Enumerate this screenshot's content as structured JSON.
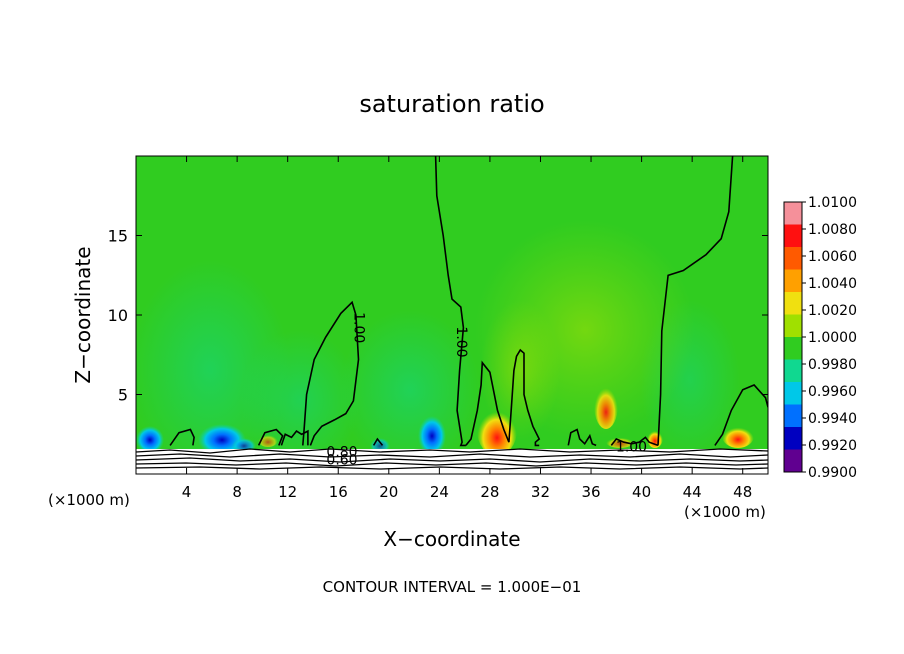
{
  "chart_data": {
    "type": "heatmap",
    "title": "saturation ratio",
    "xlabel": "X−coordinate",
    "ylabel": "Z−coordinate",
    "x_unit_left": "(×1000 m)",
    "x_unit_right": "(×1000 m)",
    "footer": "CONTOUR INTERVAL = 1.000E−01",
    "xlim": [
      0,
      50
    ],
    "ylim": [
      0,
      20
    ],
    "x_ticks": [
      4,
      8,
      12,
      16,
      20,
      24,
      28,
      32,
      36,
      40,
      44,
      48
    ],
    "y_ticks": [
      5,
      10,
      15
    ],
    "colorbar": {
      "levels": [
        "1.0100",
        "1.0080",
        "1.0060",
        "1.0040",
        "1.0020",
        "1.0000",
        "0.9980",
        "0.9960",
        "0.9940",
        "0.9920",
        "0.9900"
      ],
      "colors": [
        "#f5909a",
        "#ff1010",
        "#ff5a00",
        "#ffa000",
        "#f0e010",
        "#a0e000",
        "#30cc20",
        "#10d890",
        "#00c8e8",
        "#0070ff",
        "#0000c0",
        "#600090"
      ]
    },
    "contour_labels": [
      {
        "text": "1.00",
        "x": 17.3,
        "z": 9.2
      },
      {
        "text": "1.00",
        "x": 25.4,
        "z": 8.3
      },
      {
        "text": "1.00",
        "x": 39.2,
        "z": 1.4
      },
      {
        "text": "0.80",
        "x": 16.3,
        "z": 1.1
      },
      {
        "text": "0.60",
        "x": 16.3,
        "z": 0.6
      }
    ],
    "contour_line_level": 1.0,
    "contour_1_00": [
      {
        "x": [
          2.7,
          3.4,
          4.3,
          4.6,
          4.5
        ],
        "z": [
          1.8,
          2.6,
          2.8,
          2.3,
          1.8
        ]
      },
      {
        "x": [
          9.7,
          10.2,
          11.1,
          11.6,
          11.3
        ],
        "z": [
          1.8,
          2.6,
          2.8,
          2.4,
          1.8
        ]
      },
      {
        "x": [
          11.5,
          11.8,
          12.3,
          12.7,
          13.1,
          13.6,
          13.6
        ],
        "z": [
          1.8,
          2.5,
          2.3,
          2.7,
          2.5,
          2.7,
          1.8
        ]
      },
      {
        "x": [
          13.2,
          13.3,
          13.5,
          14.1,
          15.0,
          16.2,
          17.1,
          17.4,
          17.6,
          17.2,
          16.6,
          15.7,
          14.7,
          14.1,
          13.8
        ],
        "z": [
          1.8,
          2.8,
          5.0,
          7.2,
          8.6,
          10.1,
          10.8,
          10.0,
          7.2,
          4.6,
          3.8,
          3.4,
          3.0,
          2.4,
          1.8
        ]
      },
      {
        "x": [
          18.8,
          19.1,
          19.5
        ],
        "z": [
          1.8,
          2.2,
          1.8
        ]
      },
      {
        "x": [
          23.7,
          23.8,
          24.3,
          24.7,
          25.0,
          25.7,
          25.9,
          25.6,
          25.4,
          25.8,
          25.7,
          26.1
        ],
        "z": [
          20.0,
          17.5,
          15.0,
          12.5,
          11.0,
          10.5,
          9.2,
          6.5,
          4.0,
          2.0,
          1.8,
          1.8
        ]
      },
      {
        "x": [
          26.1,
          26.5,
          27.0,
          27.3,
          27.4,
          28.0,
          28.6,
          29.1,
          29.5
        ],
        "z": [
          1.8,
          2.2,
          4.0,
          5.6,
          7.0,
          6.4,
          4.0,
          2.8,
          2.0
        ]
      },
      {
        "x": [
          29.5,
          29.7,
          29.9,
          30.1,
          30.4,
          30.7,
          30.7,
          31.0,
          31.4,
          31.9,
          31.6,
          31.6,
          31.8,
          31.9
        ],
        "z": [
          2.0,
          4.2,
          6.5,
          7.4,
          7.8,
          7.6,
          5.0,
          4.0,
          3.0,
          2.2,
          2.0,
          1.8,
          1.8,
          1.8
        ]
      },
      {
        "x": [
          34.2,
          34.4,
          34.9,
          35.1,
          35.5,
          35.9,
          36.1,
          36.4
        ],
        "z": [
          1.8,
          2.6,
          2.8,
          2.2,
          1.9,
          2.4,
          1.9,
          1.8
        ]
      },
      {
        "x": [
          37.6,
          38.0,
          38.6,
          39.2,
          39.8,
          40.3,
          40.6,
          41.3
        ],
        "z": [
          1.8,
          2.2,
          2.0,
          1.9,
          2.0,
          2.3,
          2.0,
          1.8
        ]
      },
      {
        "x": [
          41.3,
          41.5,
          41.6,
          42.1,
          43.3,
          45.1,
          46.3,
          46.9,
          47.2
        ],
        "z": [
          1.8,
          5.0,
          9.0,
          12.5,
          12.8,
          13.8,
          14.8,
          16.5,
          20.0
        ]
      },
      {
        "x": [
          45.8,
          46.4,
          47.1,
          48.0,
          48.9,
          49.8,
          50.0
        ],
        "z": [
          1.8,
          2.5,
          4.0,
          5.3,
          5.6,
          4.8,
          4.2
        ]
      }
    ]
  }
}
